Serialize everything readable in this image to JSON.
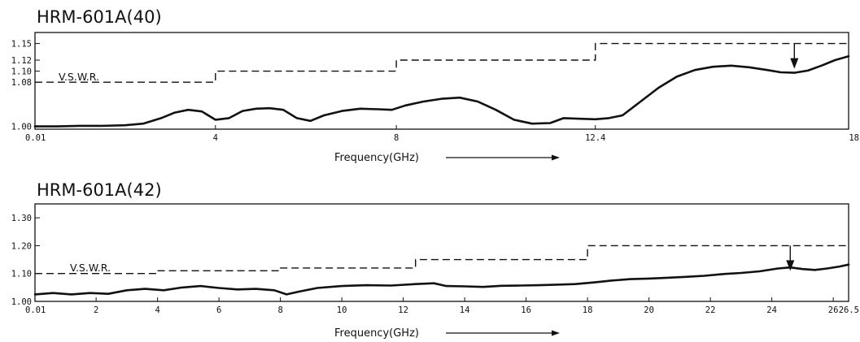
{
  "chart_data": [
    {
      "type": "line",
      "title": "HRM-601A(40)",
      "xlabel": "Frequency(GHz)",
      "ylabel": "",
      "xlim": [
        0.01,
        18
      ],
      "ylim": [
        0.995,
        1.17
      ],
      "xticks": [
        {
          "v": 0.01,
          "label": "0.01"
        },
        {
          "v": 4,
          "label": "4"
        },
        {
          "v": 8,
          "label": "8"
        },
        {
          "v": 12.4,
          "label": "12.4"
        },
        {
          "v": 18,
          "label": "18"
        }
      ],
      "yticks": [
        {
          "v": 1.0,
          "label": "1.00"
        },
        {
          "v": 1.08,
          "label": "1.08"
        },
        {
          "v": 1.1,
          "label": "1.10"
        },
        {
          "v": 1.12,
          "label": "1.12"
        },
        {
          "v": 1.15,
          "label": "1.15"
        }
      ],
      "limit_label": "V.S.W.R.",
      "limit": [
        {
          "x0": 0.01,
          "x1": 4,
          "y": 1.08
        },
        {
          "x0": 4,
          "x1": 8,
          "y": 1.1
        },
        {
          "x0": 8,
          "x1": 12.4,
          "y": 1.12
        },
        {
          "x0": 12.4,
          "x1": 18,
          "y": 1.15
        }
      ],
      "marker_x": 16.8,
      "series": [
        {
          "x": [
            0.01,
            0.5,
            1,
            1.5,
            2,
            2.4,
            2.8,
            3.1,
            3.4,
            3.7,
            4.0,
            4.3,
            4.6,
            4.9,
            5.2,
            5.5,
            5.8,
            6.1,
            6.4,
            6.8,
            7.2,
            7.6,
            7.9,
            8.2,
            8.6,
            9.0,
            9.4,
            9.8,
            10.2,
            10.6,
            11.0,
            11.4,
            11.7,
            12.0,
            12.4,
            12.7,
            13.0,
            13.4,
            13.8,
            14.2,
            14.6,
            15.0,
            15.4,
            15.8,
            16.2,
            16.5,
            16.8,
            17.1,
            17.4,
            17.7,
            18.0
          ],
          "y": [
            1.0,
            1.0,
            1.001,
            1.001,
            1.002,
            1.005,
            1.015,
            1.025,
            1.03,
            1.027,
            1.012,
            1.015,
            1.028,
            1.032,
            1.033,
            1.03,
            1.015,
            1.01,
            1.02,
            1.028,
            1.032,
            1.031,
            1.03,
            1.038,
            1.045,
            1.05,
            1.052,
            1.045,
            1.03,
            1.012,
            1.005,
            1.006,
            1.015,
            1.014,
            1.013,
            1.015,
            1.02,
            1.045,
            1.07,
            1.09,
            1.102,
            1.108,
            1.11,
            1.107,
            1.102,
            1.098,
            1.097,
            1.101,
            1.11,
            1.12,
            1.127
          ]
        }
      ]
    },
    {
      "type": "line",
      "title": "HRM-601A(42)",
      "xlabel": "Frequency(GHz)",
      "ylabel": "",
      "xlim": [
        0.01,
        26.5
      ],
      "ylim": [
        1.0,
        1.35
      ],
      "xticks": [
        {
          "v": 0.01,
          "label": "0.01"
        },
        {
          "v": 2,
          "label": "2"
        },
        {
          "v": 4,
          "label": "4"
        },
        {
          "v": 6,
          "label": "6"
        },
        {
          "v": 8,
          "label": "8"
        },
        {
          "v": 10,
          "label": "10"
        },
        {
          "v": 12,
          "label": "12"
        },
        {
          "v": 14,
          "label": "14"
        },
        {
          "v": 16,
          "label": "16"
        },
        {
          "v": 18,
          "label": "18"
        },
        {
          "v": 20,
          "label": "20"
        },
        {
          "v": 22,
          "label": "22"
        },
        {
          "v": 24,
          "label": "24"
        },
        {
          "v": 26,
          "label": "26"
        },
        {
          "v": 26.5,
          "label": "26.5"
        }
      ],
      "yticks": [
        {
          "v": 1.0,
          "label": "1.00"
        },
        {
          "v": 1.1,
          "label": "1.10"
        },
        {
          "v": 1.2,
          "label": "1.20"
        },
        {
          "v": 1.3,
          "label": "1.30"
        }
      ],
      "limit_label": "V.S.W.R.",
      "limit": [
        {
          "x0": 0.01,
          "x1": 4,
          "y": 1.1
        },
        {
          "x0": 4,
          "x1": 8,
          "y": 1.11
        },
        {
          "x0": 8,
          "x1": 12.4,
          "y": 1.12
        },
        {
          "x0": 12.4,
          "x1": 18,
          "y": 1.15
        },
        {
          "x0": 18,
          "x1": 26.5,
          "y": 1.2
        }
      ],
      "marker_x": 24.6,
      "series": [
        {
          "x": [
            0.01,
            0.6,
            1.2,
            1.8,
            2.4,
            3.0,
            3.6,
            4.2,
            4.8,
            5.4,
            6.0,
            6.6,
            7.2,
            7.8,
            8.2,
            8.6,
            9.2,
            10.0,
            10.8,
            11.6,
            12.4,
            13.0,
            13.4,
            14.0,
            14.6,
            15.2,
            15.8,
            16.4,
            17.0,
            17.6,
            18.2,
            18.8,
            19.4,
            20.0,
            20.6,
            21.2,
            21.8,
            22.4,
            23.0,
            23.6,
            24.2,
            24.6,
            25.0,
            25.4,
            25.8,
            26.2,
            26.5
          ],
          "y": [
            1.025,
            1.03,
            1.025,
            1.03,
            1.027,
            1.04,
            1.045,
            1.04,
            1.05,
            1.055,
            1.048,
            1.043,
            1.045,
            1.04,
            1.025,
            1.035,
            1.048,
            1.055,
            1.058,
            1.057,
            1.062,
            1.065,
            1.055,
            1.054,
            1.052,
            1.056,
            1.057,
            1.058,
            1.06,
            1.062,
            1.068,
            1.075,
            1.08,
            1.082,
            1.085,
            1.088,
            1.092,
            1.098,
            1.102,
            1.108,
            1.118,
            1.122,
            1.116,
            1.113,
            1.118,
            1.125,
            1.132
          ]
        }
      ]
    }
  ]
}
